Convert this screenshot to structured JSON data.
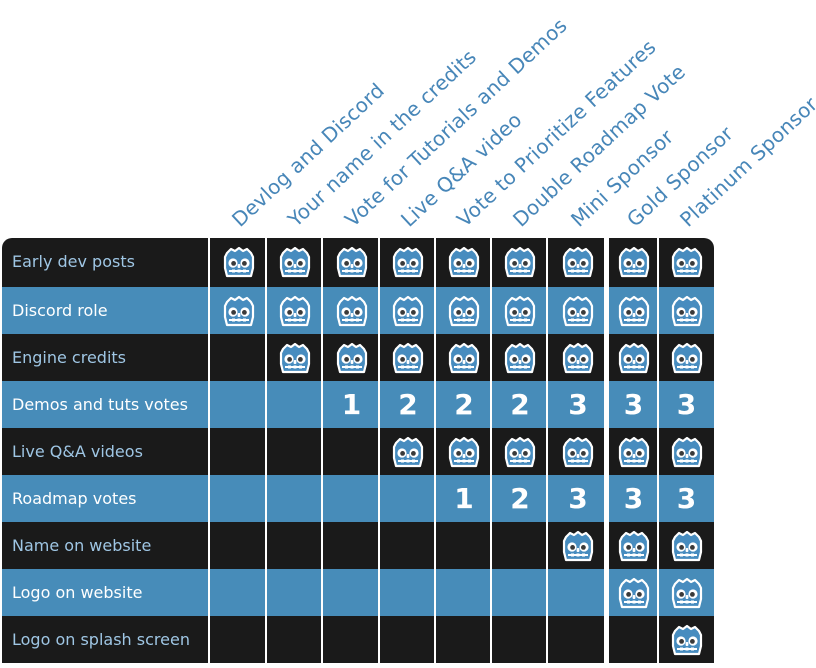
{
  "tiers": [
    "Devlog and Discord",
    "Your name in the credits",
    "Vote for Tutorials and Demos",
    "Live Q&A video",
    "Vote to Prioritize Features",
    "Double Roadmap Vote",
    "Mini Sponsor",
    "Gold Sponsor",
    "Platinum Sponsor"
  ],
  "rows": [
    {
      "label": "Early dev posts",
      "cells": [
        "icon",
        "icon",
        "icon",
        "icon",
        "icon",
        "icon",
        "icon",
        "icon",
        "icon"
      ]
    },
    {
      "label": "Discord role",
      "cells": [
        "icon",
        "icon",
        "icon",
        "icon",
        "icon",
        "icon",
        "icon",
        "icon",
        "icon"
      ]
    },
    {
      "label": "Engine credits",
      "cells": [
        "",
        "icon",
        "icon",
        "icon",
        "icon",
        "icon",
        "icon",
        "icon",
        "icon"
      ]
    },
    {
      "label": "Demos and tuts votes",
      "cells": [
        "",
        "",
        "1",
        "2",
        "2",
        "2",
        "3",
        "3",
        "3"
      ]
    },
    {
      "label": "Live Q&A videos",
      "cells": [
        "",
        "",
        "",
        "icon",
        "icon",
        "icon",
        "icon",
        "icon",
        "icon"
      ]
    },
    {
      "label": "Roadmap votes",
      "cells": [
        "",
        "",
        "",
        "",
        "1",
        "2",
        "3",
        "3",
        "3"
      ]
    },
    {
      "label": "Name on website",
      "cells": [
        "",
        "",
        "",
        "",
        "",
        "",
        "icon",
        "icon",
        "icon"
      ]
    },
    {
      "label": "Logo on website",
      "cells": [
        "",
        "",
        "",
        "",
        "",
        "",
        "",
        "icon",
        "icon"
      ]
    },
    {
      "label": "Logo on splash screen",
      "cells": [
        "",
        "",
        "",
        "",
        "",
        "",
        "",
        "",
        "icon"
      ]
    }
  ],
  "icon": "godot-robot-icon",
  "colors": {
    "dark_row": "#1a1a1a",
    "light_row": "#478cb9",
    "header_text": "#4786b8",
    "icon_blue": "#478cbf",
    "icon_outline": "#ffffff"
  }
}
